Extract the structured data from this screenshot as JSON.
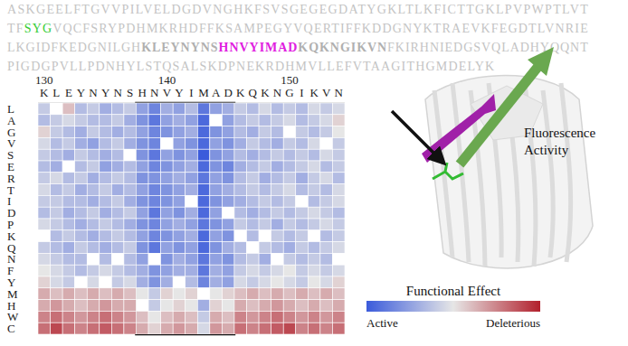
{
  "sequence": [
    [
      {
        "text": "ASKGEELFTGVVPILVELDGDVNGHKFSVSGEGEGDATYGKLTLKFICTTGKLPVPWPTLVT",
        "style": "plain"
      }
    ],
    [
      {
        "text": "TF",
        "style": "plain"
      },
      {
        "text": "SYG",
        "style": "chromophore"
      },
      {
        "text": "VQCFSRYPDHMKRHDFFKSAMPEGYVQERTIFFKDDGNYKTRAEVKFEGDTLVNRIE",
        "style": "plain"
      }
    ],
    [
      {
        "text": "LKGIDFKEDGNILGH",
        "style": "plain"
      },
      {
        "text": "KLEYNYNS",
        "style": "bold"
      },
      {
        "text": "HNVYIMAD",
        "style": "highlight"
      },
      {
        "text": "KQKNGIKVN",
        "style": "bold"
      },
      {
        "text": "FKIRHNIEDGSVQLADHYQQNT",
        "style": "plain"
      }
    ],
    [
      {
        "text": "PIGDGPVLLPDNHYLSTQSALSKDPNEKRDHMVLLEFVTAAGITHGMDELYK",
        "style": "plain"
      }
    ]
  ],
  "structure": {
    "label": [
      "Fluorescence",
      "Activity"
    ]
  },
  "chart_data": {
    "type": "heatmap",
    "x": [
      130,
      131,
      132,
      133,
      134,
      135,
      136,
      137,
      138,
      139,
      140,
      141,
      142,
      143,
      144,
      145,
      146,
      147,
      148,
      149,
      150,
      151,
      152,
      153,
      154
    ],
    "x_labels": [
      "K",
      "L",
      "E",
      "Y",
      "N",
      "Y",
      "N",
      "S",
      "H",
      "N",
      "V",
      "Y",
      "I",
      "M",
      "A",
      "D",
      "K",
      "Q",
      "K",
      "N",
      "G",
      "I",
      "K",
      "V",
      "N"
    ],
    "xlim": [
      129.5,
      154.5
    ],
    "xticks": [
      130,
      140,
      150
    ],
    "y_labels": [
      "L",
      "A",
      "G",
      "V",
      "S",
      "E",
      "R",
      "T",
      "I",
      "D",
      "P",
      "K",
      "Q",
      "N",
      "F",
      "Y",
      "M",
      "H",
      "W",
      "C"
    ],
    "highlight": {
      "x": [
        138,
        145
      ]
    },
    "cells": [
      [
        -0.2,
        null,
        0.2,
        -0.3,
        -0.2,
        -0.4,
        -0.3,
        -0.2,
        -0.5,
        -0.7,
        -0.4,
        -0.5,
        -0.3,
        -0.8,
        -0.5,
        -0.4,
        -0.2,
        -0.3,
        -0.1,
        -0.3,
        -0.2,
        -0.3,
        -0.1,
        -0.2,
        -0.1
      ],
      [
        -0.3,
        -0.2,
        -0.1,
        -0.2,
        -0.3,
        -0.3,
        -0.2,
        -0.4,
        -0.6,
        -0.8,
        -0.5,
        -0.4,
        -0.5,
        -0.9,
        null,
        -0.5,
        -0.3,
        -0.2,
        -0.3,
        -0.2,
        -0.1,
        -0.3,
        -0.2,
        -0.1,
        0.1
      ],
      [
        0.1,
        -0.2,
        -0.3,
        -0.4,
        -0.2,
        -0.3,
        -0.4,
        -0.3,
        -0.5,
        -0.7,
        -0.6,
        -0.5,
        -0.4,
        -0.9,
        -0.6,
        -0.5,
        -0.3,
        -0.4,
        -0.2,
        -0.3,
        null,
        -0.2,
        -0.3,
        -0.2,
        0.0
      ],
      [
        -0.1,
        -0.3,
        -0.2,
        -0.4,
        -0.5,
        -0.3,
        -0.2,
        -0.4,
        -0.6,
        -0.7,
        null,
        -0.5,
        -0.6,
        -0.9,
        -0.5,
        -0.6,
        -0.4,
        -0.2,
        -0.3,
        -0.4,
        -0.2,
        -0.3,
        -0.1,
        null,
        -0.2
      ],
      [
        -0.2,
        -0.3,
        -0.4,
        -0.2,
        -0.3,
        -0.4,
        -0.3,
        null,
        -0.6,
        -0.8,
        -0.5,
        -0.6,
        -0.5,
        -1.0,
        -0.6,
        -0.5,
        -0.3,
        -0.4,
        -0.3,
        -0.2,
        -0.3,
        -0.2,
        -0.3,
        -0.1,
        -0.2
      ],
      [
        -0.3,
        -0.4,
        null,
        -0.3,
        -0.2,
        -0.5,
        -0.4,
        -0.3,
        -0.5,
        -0.7,
        -0.6,
        -0.5,
        -0.4,
        -0.9,
        -0.6,
        -0.7,
        -0.4,
        -0.3,
        -0.2,
        -0.4,
        -0.3,
        -0.2,
        -0.1,
        -0.3,
        -0.2
      ],
      [
        -0.2,
        -0.1,
        -0.3,
        -0.2,
        -0.4,
        -0.3,
        -0.2,
        -0.3,
        -0.6,
        -0.6,
        -0.5,
        -0.4,
        -0.5,
        -0.8,
        -0.5,
        -0.6,
        -0.3,
        -0.2,
        -0.4,
        -0.3,
        -0.2,
        -0.4,
        -0.2,
        -0.1,
        -0.3
      ],
      [
        -0.1,
        -0.3,
        -0.2,
        -0.4,
        -0.3,
        -0.2,
        -0.4,
        -0.3,
        -0.5,
        -0.7,
        -0.6,
        -0.5,
        -0.4,
        -0.9,
        -0.5,
        -0.4,
        -0.3,
        -0.2,
        -0.3,
        -0.2,
        -0.1,
        -0.3,
        -0.2,
        -0.3,
        -0.1
      ],
      [
        -0.2,
        -0.2,
        -0.3,
        -0.3,
        -0.4,
        -0.3,
        -0.2,
        -0.4,
        -0.6,
        -0.7,
        -0.6,
        -0.5,
        null,
        -0.9,
        -0.6,
        -0.5,
        -0.4,
        -0.3,
        -0.2,
        -0.3,
        -0.2,
        null,
        -0.3,
        -0.2,
        -0.1
      ],
      [
        -0.3,
        -0.2,
        -0.4,
        -0.3,
        -0.2,
        -0.4,
        -0.3,
        -0.2,
        -0.5,
        -0.8,
        -0.5,
        -0.6,
        -0.4,
        -0.9,
        -0.5,
        null,
        -0.3,
        -0.4,
        -0.3,
        -0.2,
        -0.3,
        -0.2,
        -0.1,
        -0.2,
        -0.3
      ],
      [
        -0.1,
        -0.2,
        -0.3,
        -0.4,
        -0.3,
        -0.2,
        -0.3,
        -0.4,
        -0.6,
        -0.7,
        -0.5,
        -0.4,
        -0.5,
        -0.8,
        -0.6,
        -0.5,
        -0.2,
        -0.3,
        -0.2,
        -0.4,
        -0.2,
        -0.3,
        -0.2,
        -0.1,
        -0.2
      ],
      [
        null,
        -0.3,
        -0.2,
        -0.3,
        -0.4,
        -0.3,
        -0.2,
        -0.3,
        -0.5,
        -0.7,
        -0.6,
        -0.5,
        -0.4,
        -0.9,
        -0.5,
        -0.6,
        null,
        -0.3,
        null,
        -0.2,
        -0.3,
        -0.2,
        null,
        -0.3,
        -0.2
      ],
      [
        -0.2,
        -0.3,
        -0.4,
        -0.2,
        -0.3,
        -0.4,
        -0.3,
        -0.2,
        -0.6,
        -0.8,
        -0.5,
        -0.6,
        -0.5,
        -0.9,
        -0.6,
        -0.4,
        -0.3,
        null,
        -0.2,
        -0.3,
        -0.4,
        -0.2,
        -0.3,
        -0.2,
        -0.1
      ],
      [
        -0.1,
        -0.2,
        -0.3,
        -0.3,
        null,
        -0.3,
        null,
        -0.3,
        -0.5,
        null,
        -0.6,
        -0.4,
        -0.5,
        -0.8,
        -0.5,
        -0.6,
        -0.3,
        -0.2,
        -0.4,
        null,
        -0.2,
        -0.3,
        -0.2,
        -0.3,
        null
      ],
      [
        0.0,
        -0.1,
        -0.2,
        -0.3,
        -0.2,
        -0.1,
        -0.2,
        -0.3,
        -0.4,
        -0.6,
        -0.5,
        -0.4,
        -0.4,
        -0.8,
        -0.4,
        -0.5,
        -0.2,
        -0.1,
        -0.2,
        -0.1,
        0.0,
        -0.2,
        -0.1,
        -0.2,
        -0.1
      ],
      [
        0.1,
        -0.1,
        -0.2,
        null,
        -0.1,
        null,
        -0.2,
        -0.1,
        -0.4,
        -0.6,
        -0.4,
        null,
        -0.3,
        -0.7,
        -0.4,
        -0.5,
        -0.1,
        -0.2,
        -0.1,
        0.0,
        -0.1,
        -0.2,
        0.0,
        -0.1,
        0.1
      ],
      [
        0.3,
        0.2,
        0.3,
        0.2,
        0.3,
        0.2,
        0.3,
        0.2,
        0.0,
        -0.2,
        0.1,
        0.0,
        0.1,
        null,
        0.0,
        0.1,
        0.2,
        0.3,
        0.2,
        0.3,
        0.2,
        0.3,
        0.2,
        0.3,
        0.2
      ],
      [
        0.3,
        0.4,
        0.3,
        0.2,
        0.3,
        0.4,
        0.3,
        0.3,
        null,
        -0.2,
        0.0,
        0.1,
        0.0,
        -0.4,
        0.1,
        0.0,
        0.3,
        0.2,
        0.3,
        0.4,
        0.3,
        0.2,
        0.3,
        0.2,
        0.3
      ],
      [
        0.5,
        0.6,
        0.5,
        0.4,
        0.5,
        0.6,
        0.5,
        0.4,
        0.2,
        0.0,
        0.2,
        0.3,
        0.2,
        -0.2,
        0.3,
        0.2,
        0.5,
        0.4,
        0.5,
        0.6,
        0.5,
        0.4,
        0.5,
        0.4,
        0.5
      ],
      [
        0.6,
        0.8,
        0.6,
        0.5,
        0.6,
        0.7,
        0.6,
        0.5,
        0.3,
        0.1,
        0.3,
        0.4,
        0.3,
        -0.1,
        0.4,
        0.3,
        0.6,
        0.5,
        0.6,
        0.7,
        0.8,
        0.5,
        0.6,
        0.5,
        0.6
      ]
    ],
    "colorbar": {
      "title": "Functional Effect",
      "range": [
        -1,
        1
      ],
      "colors": [
        "#3b5bdb",
        "#e6e6e6",
        "#b2202c"
      ],
      "labels": [
        "Active",
        "Deleterious"
      ]
    }
  }
}
